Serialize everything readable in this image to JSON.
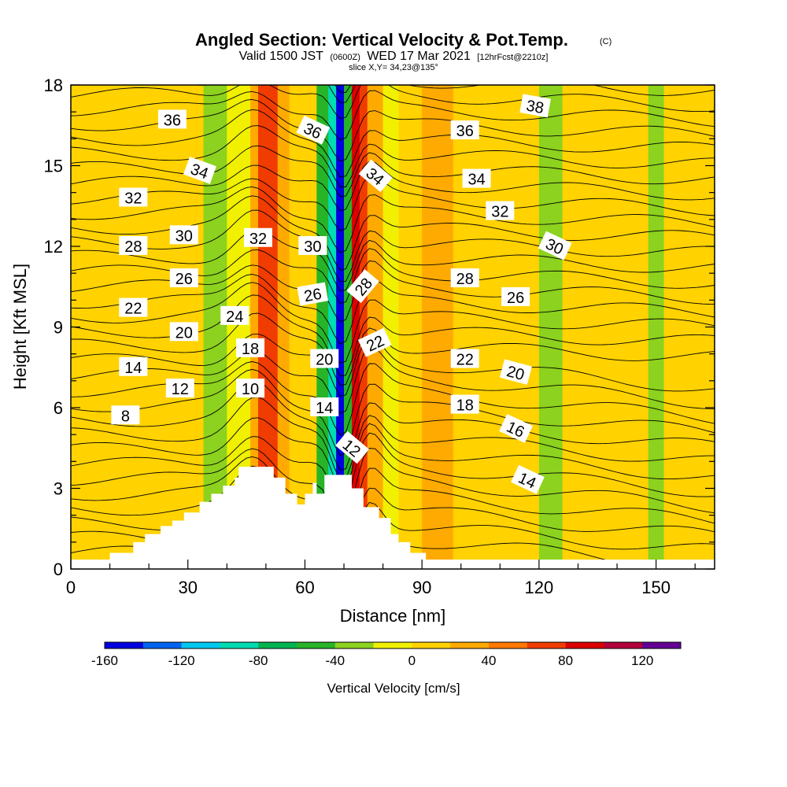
{
  "chart_data": {
    "type": "heatmap",
    "title": "Angled Section: Vertical Velocity & Pot.Temp.",
    "title_suffix": "(C)",
    "subtitle_main_a": "Valid 1500 JST",
    "subtitle_small_a": "(0600Z)",
    "subtitle_main_b": "WED 17 Mar 2021",
    "subtitle_small_b": "[12hrFcst@2210z]",
    "slice_label": "slice X,Y= 34,23@135°",
    "xlabel": "Distance [nm]",
    "ylabel": "Height [Kft MSL]",
    "xlim": [
      0,
      165
    ],
    "ylim": [
      0,
      18
    ],
    "x_ticks": [
      0,
      30,
      60,
      90,
      120,
      150
    ],
    "y_ticks": [
      0,
      3,
      6,
      9,
      12,
      15,
      18
    ],
    "colorbar": {
      "label": "Vertical Velocity [cm/s]",
      "range": [
        -160,
        140
      ],
      "step": 20,
      "tick_values": [
        -160,
        -120,
        -80,
        -40,
        0,
        40,
        80,
        120
      ],
      "colors": [
        "#0000e0",
        "#0064f0",
        "#00c8f0",
        "#00dcb4",
        "#00b450",
        "#28b428",
        "#8cd21e",
        "#f0f000",
        "#ffd200",
        "#ffaa00",
        "#ff7800",
        "#f03c00",
        "#dc0000",
        "#b4003c",
        "#640096"
      ]
    },
    "vertical_velocity_bands": [
      {
        "x_start": 0,
        "x_end": 8,
        "value": 0
      },
      {
        "x_start": 8,
        "x_end": 14,
        "value": 10
      },
      {
        "x_start": 14,
        "x_end": 22,
        "value": 0
      },
      {
        "x_start": 22,
        "x_end": 30,
        "value": 10
      },
      {
        "x_start": 30,
        "x_end": 34,
        "value": 0
      },
      {
        "x_start": 34,
        "x_end": 40,
        "value": -30
      },
      {
        "x_start": 40,
        "x_end": 46,
        "value": -10
      },
      {
        "x_start": 46,
        "x_end": 48,
        "value": 30
      },
      {
        "x_start": 48,
        "x_end": 53,
        "value": 70
      },
      {
        "x_start": 53,
        "x_end": 56,
        "value": 30
      },
      {
        "x_start": 56,
        "x_end": 60,
        "value": 10
      },
      {
        "x_start": 60,
        "x_end": 63,
        "value": 0
      },
      {
        "x_start": 63,
        "x_end": 66,
        "value": -50
      },
      {
        "x_start": 66,
        "x_end": 68,
        "value": -90
      },
      {
        "x_start": 68,
        "x_end": 70,
        "value": -150
      },
      {
        "x_start": 70,
        "x_end": 72,
        "value": -50
      },
      {
        "x_start": 72,
        "x_end": 74,
        "value": 90
      },
      {
        "x_start": 74,
        "x_end": 76,
        "value": 70
      },
      {
        "x_start": 76,
        "x_end": 80,
        "value": 30
      },
      {
        "x_start": 80,
        "x_end": 84,
        "value": -10
      },
      {
        "x_start": 84,
        "x_end": 90,
        "value": 10
      },
      {
        "x_start": 90,
        "x_end": 98,
        "value": 30
      },
      {
        "x_start": 98,
        "x_end": 104,
        "value": 10
      },
      {
        "x_start": 104,
        "x_end": 112,
        "value": 0
      },
      {
        "x_start": 112,
        "x_end": 116,
        "value": 10
      },
      {
        "x_start": 116,
        "x_end": 120,
        "value": 0
      },
      {
        "x_start": 120,
        "x_end": 126,
        "value": -30
      },
      {
        "x_start": 126,
        "x_end": 134,
        "value": 0
      },
      {
        "x_start": 134,
        "x_end": 140,
        "value": 10
      },
      {
        "x_start": 140,
        "x_end": 148,
        "value": 0
      },
      {
        "x_start": 148,
        "x_end": 152,
        "value": -30
      },
      {
        "x_start": 152,
        "x_end": 160,
        "value": 10
      },
      {
        "x_start": 160,
        "x_end": 165,
        "value": 0
      }
    ],
    "terrain_profile": [
      [
        0,
        0.35
      ],
      [
        10,
        0.35
      ],
      [
        10,
        0.6
      ],
      [
        16,
        0.6
      ],
      [
        16,
        1.0
      ],
      [
        19,
        1.0
      ],
      [
        19,
        1.3
      ],
      [
        23,
        1.3
      ],
      [
        23,
        1.6
      ],
      [
        26,
        1.6
      ],
      [
        26,
        1.8
      ],
      [
        29,
        1.8
      ],
      [
        29,
        2.1
      ],
      [
        33,
        2.1
      ],
      [
        33,
        2.5
      ],
      [
        36,
        2.5
      ],
      [
        36,
        2.8
      ],
      [
        39,
        2.8
      ],
      [
        39,
        3.1
      ],
      [
        42,
        3.1
      ],
      [
        42,
        3.4
      ],
      [
        43,
        3.4
      ],
      [
        43,
        3.8
      ],
      [
        52,
        3.8
      ],
      [
        52,
        3.4
      ],
      [
        55,
        3.4
      ],
      [
        55,
        2.8
      ],
      [
        58,
        2.8
      ],
      [
        58,
        2.4
      ],
      [
        60,
        2.4
      ],
      [
        60,
        2.8
      ],
      [
        62,
        2.8
      ],
      [
        62,
        3.2
      ],
      [
        63,
        3.2
      ],
      [
        63,
        2.8
      ],
      [
        65,
        2.8
      ],
      [
        65,
        3.5
      ],
      [
        72,
        3.5
      ],
      [
        72,
        3.0
      ],
      [
        75,
        3.0
      ],
      [
        75,
        2.3
      ],
      [
        79,
        2.3
      ],
      [
        79,
        1.9
      ],
      [
        82,
        1.9
      ],
      [
        82,
        1.3
      ],
      [
        84,
        1.3
      ],
      [
        84,
        1.0
      ],
      [
        87,
        1.0
      ],
      [
        87,
        0.6
      ],
      [
        91,
        0.6
      ],
      [
        91,
        0.35
      ],
      [
        165,
        0.35
      ]
    ],
    "theta_contour_labels": [
      {
        "x": 26,
        "y": 16.7,
        "text": "36",
        "angle": 0
      },
      {
        "x": 33,
        "y": 14.8,
        "text": "34",
        "angle": 20
      },
      {
        "x": 16,
        "y": 13.8,
        "text": "32",
        "angle": 0
      },
      {
        "x": 29,
        "y": 12.4,
        "text": "30",
        "angle": 0
      },
      {
        "x": 16,
        "y": 12.0,
        "text": "28",
        "angle": 0
      },
      {
        "x": 29,
        "y": 10.8,
        "text": "26",
        "angle": 0
      },
      {
        "x": 16,
        "y": 9.7,
        "text": "22",
        "angle": 0
      },
      {
        "x": 42,
        "y": 9.4,
        "text": "24",
        "angle": 0
      },
      {
        "x": 29,
        "y": 8.8,
        "text": "20",
        "angle": 0
      },
      {
        "x": 46,
        "y": 8.2,
        "text": "18",
        "angle": 0
      },
      {
        "x": 16,
        "y": 7.5,
        "text": "14",
        "angle": 0
      },
      {
        "x": 28,
        "y": 6.7,
        "text": "12",
        "angle": 0
      },
      {
        "x": 46,
        "y": 6.7,
        "text": "10",
        "angle": 0
      },
      {
        "x": 14,
        "y": 5.7,
        "text": "8",
        "angle": 0
      },
      {
        "x": 48,
        "y": 12.3,
        "text": "32",
        "angle": 0
      },
      {
        "x": 62,
        "y": 16.3,
        "text": "36",
        "angle": 25
      },
      {
        "x": 62,
        "y": 12.0,
        "text": "30",
        "angle": 0
      },
      {
        "x": 62,
        "y": 10.2,
        "text": "26",
        "angle": -10
      },
      {
        "x": 65,
        "y": 7.8,
        "text": "20",
        "angle": 0
      },
      {
        "x": 65,
        "y": 6.0,
        "text": "14",
        "angle": 0
      },
      {
        "x": 72,
        "y": 4.5,
        "text": "12",
        "angle": 40
      },
      {
        "x": 78,
        "y": 14.6,
        "text": "34",
        "angle": 40
      },
      {
        "x": 75,
        "y": 10.5,
        "text": "28",
        "angle": -50
      },
      {
        "x": 78,
        "y": 8.4,
        "text": "22",
        "angle": -25
      },
      {
        "x": 101,
        "y": 16.3,
        "text": "36",
        "angle": 0
      },
      {
        "x": 104,
        "y": 14.5,
        "text": "34",
        "angle": 0
      },
      {
        "x": 110,
        "y": 13.3,
        "text": "32",
        "angle": 0
      },
      {
        "x": 101,
        "y": 10.8,
        "text": "28",
        "angle": 0
      },
      {
        "x": 114,
        "y": 10.1,
        "text": "26",
        "angle": 0
      },
      {
        "x": 101,
        "y": 7.8,
        "text": "22",
        "angle": 0
      },
      {
        "x": 101,
        "y": 6.1,
        "text": "18",
        "angle": 0
      },
      {
        "x": 114,
        "y": 7.3,
        "text": "20",
        "angle": 15
      },
      {
        "x": 114,
        "y": 5.2,
        "text": "16",
        "angle": 25
      },
      {
        "x": 117,
        "y": 3.3,
        "text": "14",
        "angle": 25
      },
      {
        "x": 119,
        "y": 17.2,
        "text": "38",
        "angle": 10
      },
      {
        "x": 124,
        "y": 12.0,
        "text": "30",
        "angle": 25
      }
    ]
  }
}
